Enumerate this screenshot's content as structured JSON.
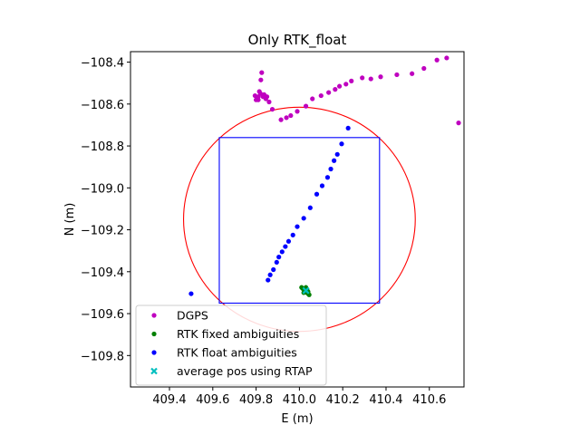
{
  "chart_data": {
    "type": "scatter",
    "title": "Only RTK_float",
    "xlabel": "E (m)",
    "ylabel": "N (m)",
    "xlim": [
      409.22,
      410.76
    ],
    "ylim": [
      -109.95,
      -108.35
    ],
    "xticks": [
      409.4,
      409.6,
      409.8,
      410.0,
      410.2,
      410.4,
      410.6
    ],
    "xtick_labels": [
      "409.4",
      "409.6",
      "409.8",
      "410.0",
      "410.2",
      "410.4",
      "410.6"
    ],
    "yticks": [
      -108.4,
      -108.6,
      -108.8,
      -109.0,
      -109.2,
      -109.4,
      -109.6,
      -109.8
    ],
    "ytick_labels": [
      "−108.4",
      "−108.6",
      "−108.8",
      "−109.0",
      "−109.2",
      "−109.4",
      "−109.6",
      "−109.8"
    ],
    "grid": false,
    "legend_position": "lower-left",
    "series": [
      {
        "name": "DGPS",
        "marker": "dot",
        "color": "#bf00bf",
        "points": [
          [
            409.8,
            -108.58
          ],
          [
            409.81,
            -108.565
          ],
          [
            409.815,
            -108.54
          ],
          [
            409.82,
            -108.55
          ],
          [
            409.822,
            -108.485
          ],
          [
            409.826,
            -108.45
          ],
          [
            409.832,
            -108.565
          ],
          [
            409.837,
            -108.555
          ],
          [
            409.845,
            -108.575
          ],
          [
            409.85,
            -108.565
          ],
          [
            409.86,
            -108.59
          ],
          [
            409.875,
            -108.625
          ],
          [
            409.805,
            -108.57
          ],
          [
            409.81,
            -108.58
          ],
          [
            409.795,
            -108.56
          ],
          [
            409.915,
            -108.675
          ],
          [
            409.94,
            -108.665
          ],
          [
            409.96,
            -108.655
          ],
          [
            409.99,
            -108.635
          ],
          [
            410.03,
            -108.61
          ],
          [
            410.06,
            -108.575
          ],
          [
            410.1,
            -108.56
          ],
          [
            410.135,
            -108.545
          ],
          [
            410.165,
            -108.53
          ],
          [
            410.185,
            -108.515
          ],
          [
            410.215,
            -108.505
          ],
          [
            410.24,
            -108.49
          ],
          [
            410.29,
            -108.475
          ],
          [
            410.33,
            -108.48
          ],
          [
            410.375,
            -108.47
          ],
          [
            410.45,
            -108.46
          ],
          [
            410.52,
            -108.455
          ],
          [
            410.575,
            -108.43
          ],
          [
            410.635,
            -108.39
          ],
          [
            410.68,
            -108.38
          ],
          [
            410.735,
            -108.69
          ]
        ]
      },
      {
        "name": "RTK fixed ambiguities",
        "marker": "dot",
        "color": "#008000",
        "points": [
          [
            410.01,
            -109.475
          ],
          [
            410.015,
            -109.48
          ],
          [
            410.02,
            -109.485
          ],
          [
            410.025,
            -109.49
          ],
          [
            410.03,
            -109.495
          ],
          [
            410.035,
            -109.5
          ],
          [
            410.04,
            -109.505
          ],
          [
            410.045,
            -109.51
          ],
          [
            410.02,
            -109.5
          ],
          [
            410.035,
            -109.485
          ],
          [
            410.03,
            -109.475
          ],
          [
            410.04,
            -109.495
          ]
        ]
      },
      {
        "name": "RTK float ambiguities",
        "marker": "dot",
        "color": "#0000ff",
        "points": [
          [
            409.5,
            -109.505
          ],
          [
            409.855,
            -109.44
          ],
          [
            409.865,
            -109.415
          ],
          [
            409.88,
            -109.39
          ],
          [
            409.895,
            -109.355
          ],
          [
            409.905,
            -109.33
          ],
          [
            409.92,
            -109.305
          ],
          [
            409.935,
            -109.28
          ],
          [
            409.95,
            -109.255
          ],
          [
            409.97,
            -109.225
          ],
          [
            409.99,
            -109.185
          ],
          [
            410.02,
            -109.145
          ],
          [
            410.05,
            -109.095
          ],
          [
            410.08,
            -109.03
          ],
          [
            410.105,
            -108.99
          ],
          [
            410.13,
            -108.95
          ],
          [
            410.145,
            -108.91
          ],
          [
            410.16,
            -108.87
          ],
          [
            410.175,
            -108.84
          ],
          [
            410.195,
            -108.79
          ],
          [
            410.225,
            -108.715
          ]
        ]
      },
      {
        "name": "average pos using RTAP",
        "marker": "x",
        "color": "#00bfbf",
        "points": [
          [
            410.03,
            -109.49
          ]
        ]
      }
    ],
    "overlays": [
      {
        "shape": "circle",
        "color": "#ff0000",
        "center": [
          410.0,
          -109.15
        ],
        "radius": 0.535
      },
      {
        "shape": "square",
        "color": "#0000ff",
        "x_range": [
          409.63,
          410.37
        ],
        "y_range": [
          -109.55,
          -108.76
        ]
      }
    ]
  }
}
